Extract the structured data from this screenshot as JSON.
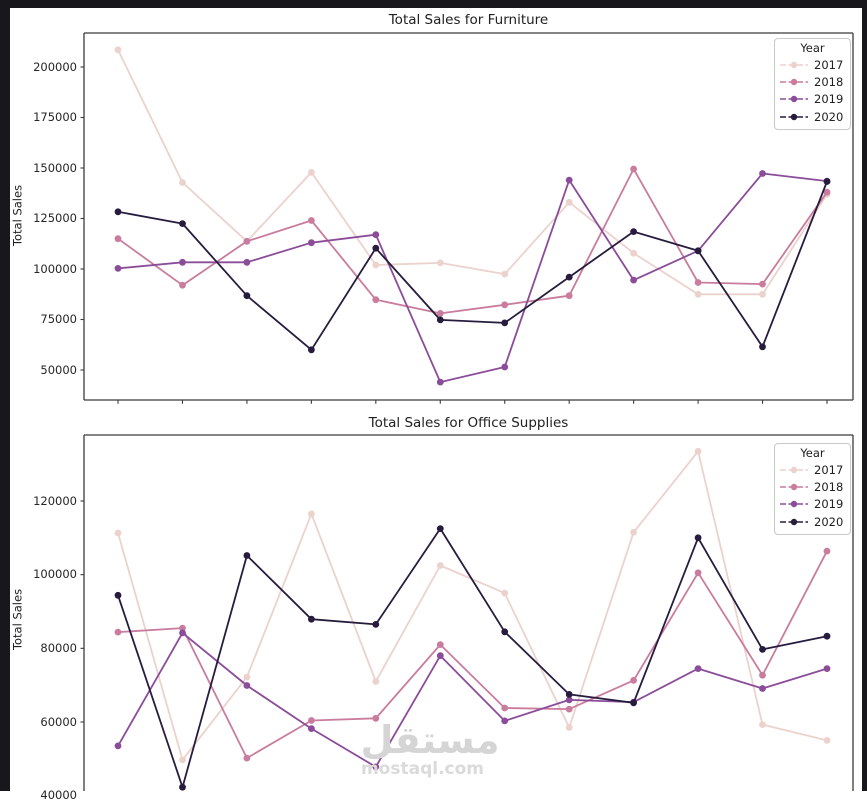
{
  "frame": {
    "border_color": "#17171c",
    "canvas_color": "#ffffff"
  },
  "watermark": {
    "arabic": "مستقل",
    "domain": "mostaql.com"
  },
  "chart_data": [
    {
      "type": "line",
      "title": "Total Sales for Furniture",
      "xlabel": "",
      "ylabel": "Total Sales",
      "x": [
        1,
        2,
        3,
        4,
        5,
        6,
        7,
        8,
        9,
        10,
        11,
        12
      ],
      "x_tick_labels": [],
      "yticks": [
        200000,
        175000,
        150000,
        125000,
        100000,
        75000,
        50000
      ],
      "ylim": [
        35000,
        217000
      ],
      "grid": false,
      "legend": {
        "title": "Year",
        "position": "upper right"
      },
      "series": [
        {
          "name": "2017",
          "color": "#ecd2cc",
          "values": [
            208500,
            142800,
            113700,
            147800,
            102000,
            103000,
            97500,
            133000,
            107800,
            87500,
            87500,
            137000
          ]
        },
        {
          "name": "2018",
          "color": "#c97c9d",
          "values": [
            115000,
            92000,
            113700,
            124000,
            84800,
            78000,
            82300,
            86800,
            149500,
            93300,
            92500,
            138000
          ]
        },
        {
          "name": "2019",
          "color": "#8b4d99",
          "values": [
            100300,
            103300,
            103300,
            113000,
            117000,
            44000,
            51500,
            144000,
            94500,
            109000,
            147300,
            143500
          ]
        },
        {
          "name": "2020",
          "color": "#271c3e",
          "values": [
            128300,
            122500,
            86800,
            60000,
            110300,
            74800,
            73300,
            96000,
            118500,
            109000,
            61500,
            143300
          ]
        }
      ]
    },
    {
      "type": "line",
      "title": "Total Sales for Office Supplies",
      "xlabel": "",
      "ylabel": "Total Sales",
      "x": [
        1,
        2,
        3,
        4,
        5,
        6,
        7,
        8,
        9,
        10,
        11,
        12
      ],
      "x_tick_labels": [],
      "yticks": [
        120000,
        100000,
        80000,
        60000,
        40000
      ],
      "ylim": [
        40000,
        137900
      ],
      "grid": false,
      "legend": {
        "title": "Year",
        "position": "upper right"
      },
      "series": [
        {
          "name": "2017",
          "color": "#ecd2cc",
          "values": [
            111300,
            49700,
            72200,
            116500,
            71000,
            102500,
            95000,
            58500,
            111500,
            133500,
            59300,
            55000
          ]
        },
        {
          "name": "2018",
          "color": "#c97c9d",
          "values": [
            84400,
            85500,
            50200,
            60400,
            61000,
            81000,
            63800,
            63500,
            71300,
            100500,
            72700,
            106400
          ]
        },
        {
          "name": "2019",
          "color": "#8b4d99",
          "values": [
            53500,
            84200,
            69900,
            58200,
            47800,
            78000,
            60300,
            66000,
            65400,
            74500,
            69100,
            74500
          ]
        },
        {
          "name": "2020",
          "color": "#271c3e",
          "values": [
            94400,
            42300,
            105200,
            87900,
            86500,
            112500,
            84500,
            67500,
            65200,
            110000,
            79700,
            83300
          ]
        }
      ]
    }
  ]
}
